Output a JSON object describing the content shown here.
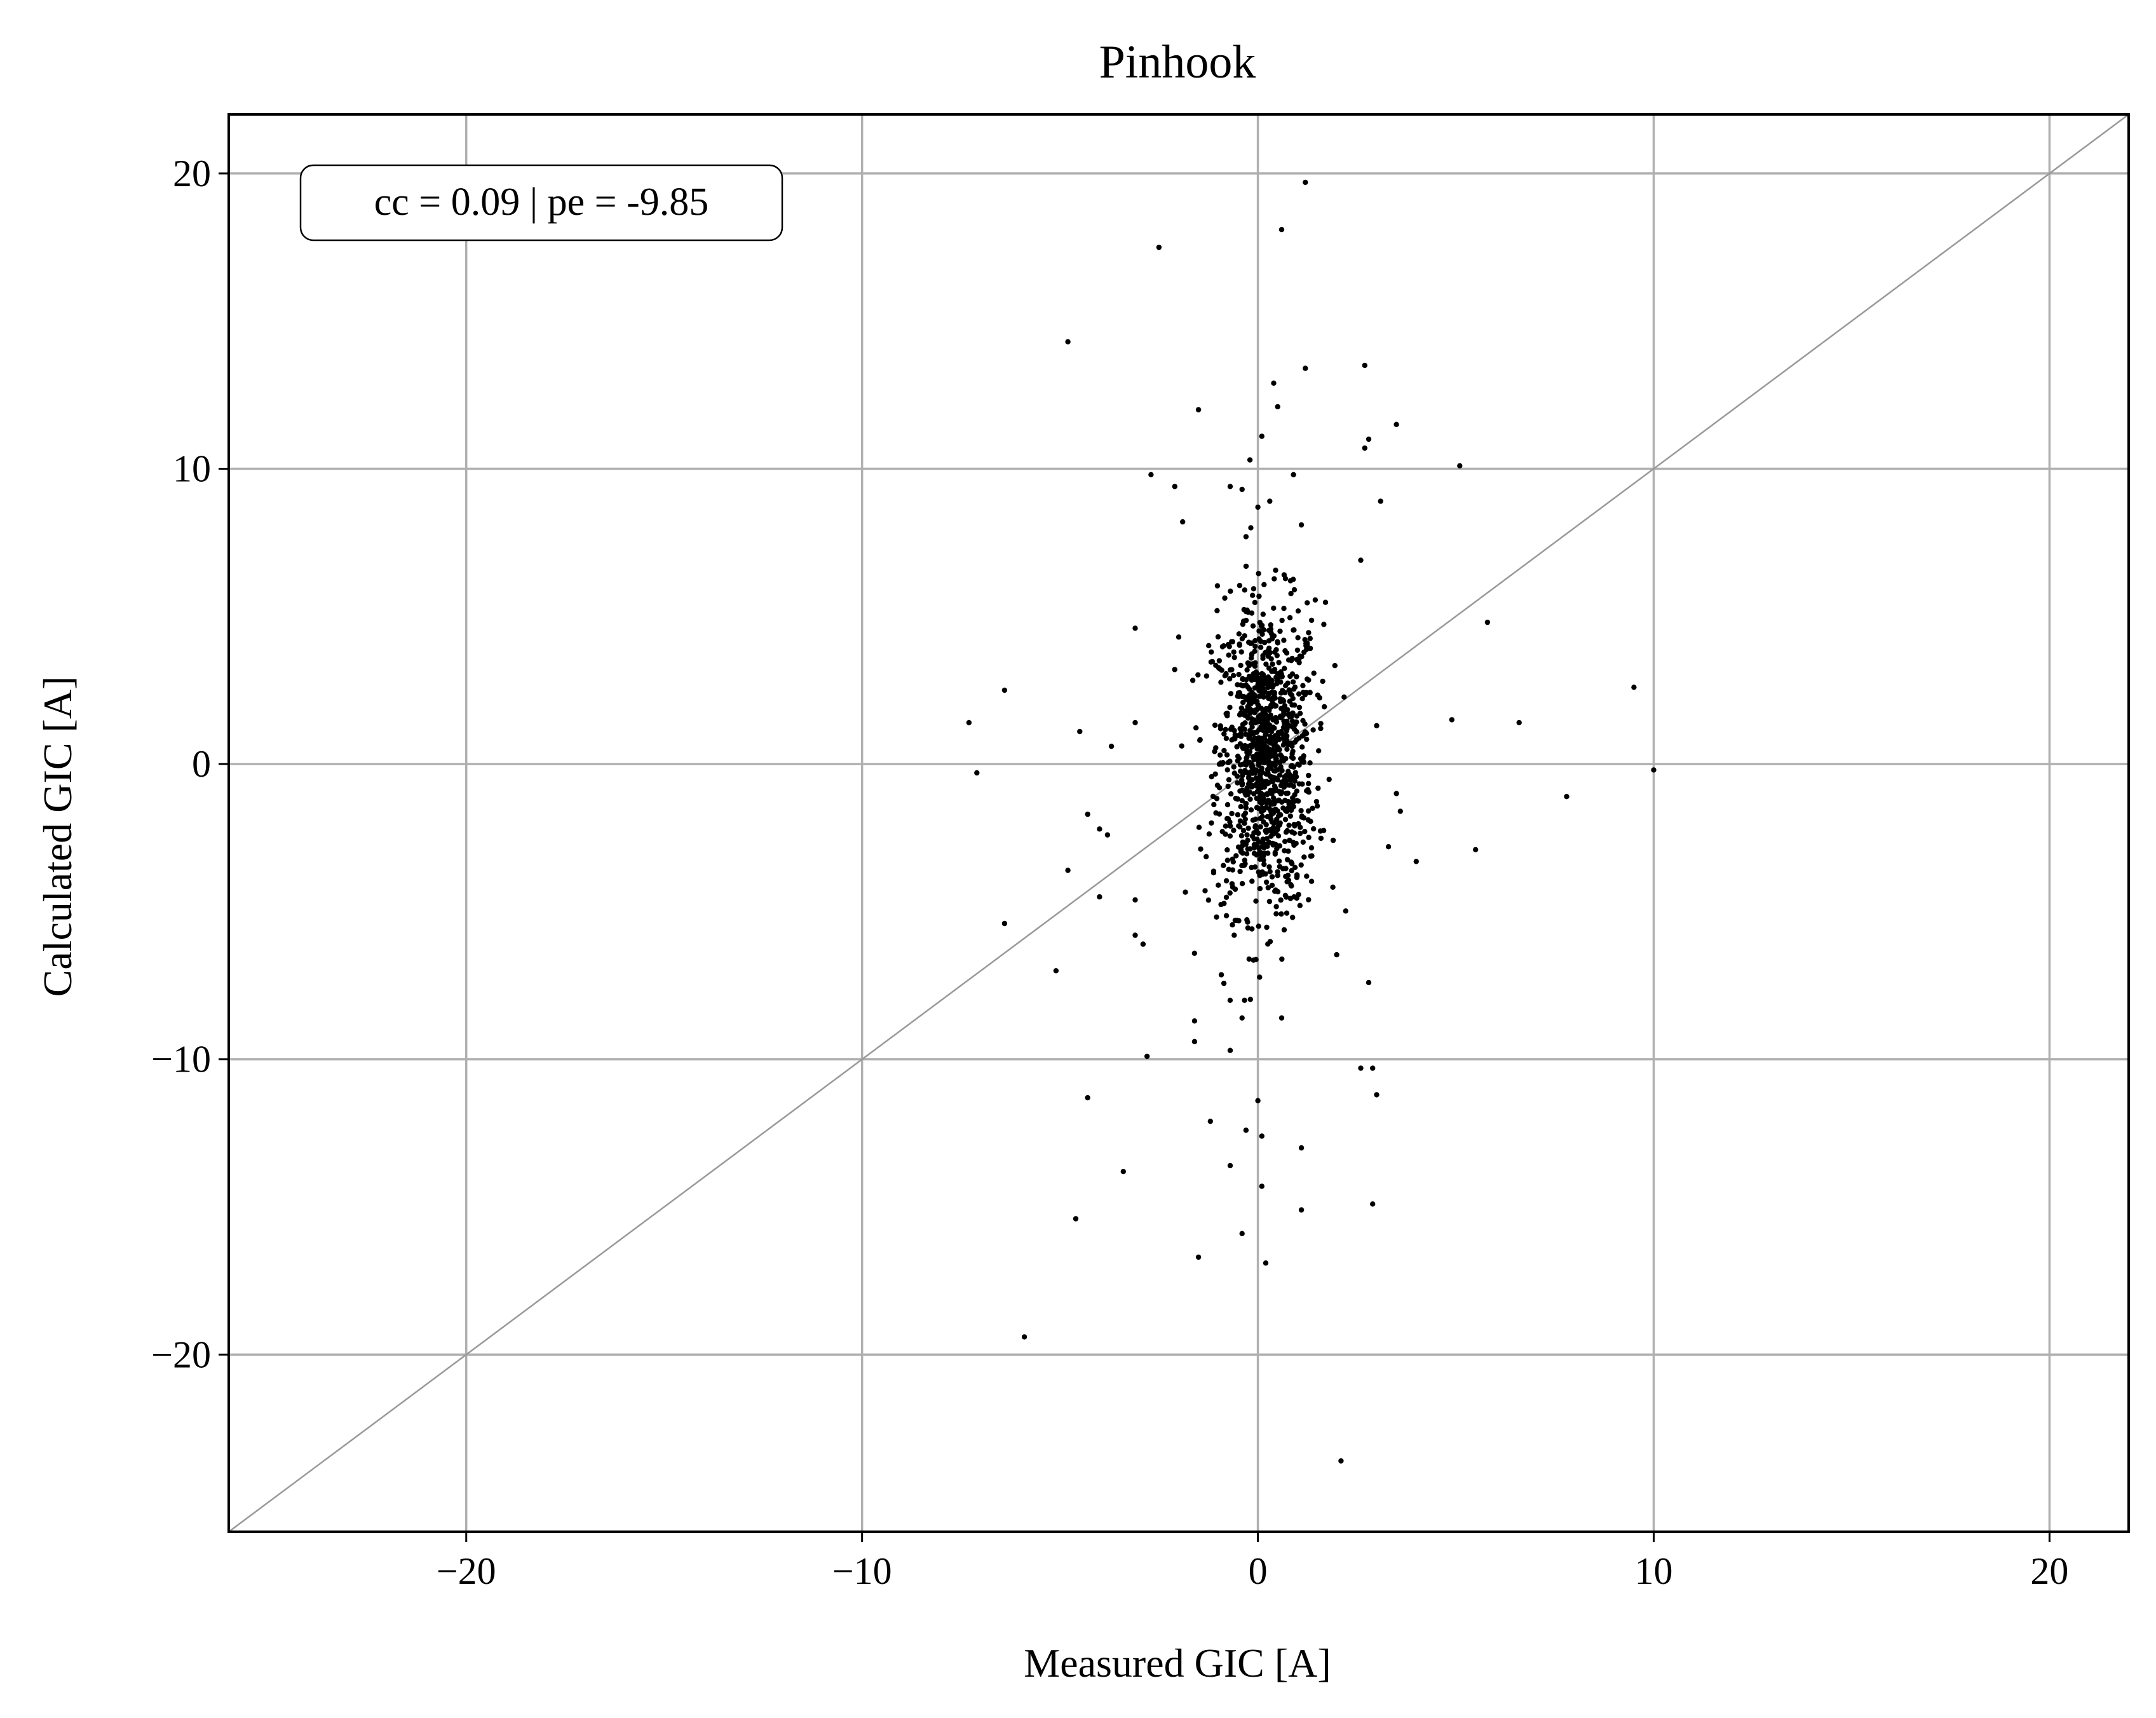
{
  "chart_data": {
    "type": "scatter",
    "title": "Pinhook",
    "xlabel": "Measured GIC [A]",
    "ylabel": "Calculated GIC [A]",
    "xlim": [
      -26,
      22
    ],
    "ylim": [
      -26,
      22
    ],
    "x_ticks": [
      -20,
      -10,
      0,
      10,
      20
    ],
    "y_ticks": [
      -20,
      -10,
      0,
      10,
      20
    ],
    "x_tick_labels": [
      "−20",
      "−10",
      "0",
      "10",
      "20"
    ],
    "y_tick_labels": [
      "−20",
      "−10",
      "0",
      "10",
      "20"
    ],
    "grid": true,
    "reference_line": {
      "type": "y=x",
      "color": "#999999"
    },
    "annotation": {
      "text": "cc = 0.09 | pe = -9.85",
      "position": "top-left"
    },
    "point_color": "#000000",
    "cluster": {
      "center_x": 0.2,
      "center_y": 0.2,
      "sd_x": 0.55,
      "sd_y": 2.6,
      "count": 1150
    },
    "points": [
      [
        1.2,
        19.7
      ],
      [
        0.6,
        18.1
      ],
      [
        -2.5,
        17.5
      ],
      [
        -4.8,
        14.3
      ],
      [
        2.7,
        13.5
      ],
      [
        1.2,
        13.4
      ],
      [
        0.4,
        12.9
      ],
      [
        0.5,
        12.1
      ],
      [
        -1.5,
        12.0
      ],
      [
        3.5,
        11.5
      ],
      [
        2.8,
        11.0
      ],
      [
        2.7,
        10.7
      ],
      [
        0.1,
        11.1
      ],
      [
        -0.2,
        10.3
      ],
      [
        5.1,
        10.1
      ],
      [
        -2.7,
        9.8
      ],
      [
        0.9,
        9.8
      ],
      [
        -2.1,
        9.4
      ],
      [
        -0.7,
        9.4
      ],
      [
        -0.4,
        9.3
      ],
      [
        3.1,
        8.9
      ],
      [
        0.3,
        8.9
      ],
      [
        0.0,
        8.7
      ],
      [
        -1.9,
        8.2
      ],
      [
        1.1,
        8.1
      ],
      [
        -0.3,
        7.7
      ],
      [
        2.6,
        6.9
      ],
      [
        -3.1,
        4.6
      ],
      [
        5.8,
        4.8
      ],
      [
        -2.0,
        4.3
      ],
      [
        -6.4,
        2.5
      ],
      [
        9.5,
        2.6
      ],
      [
        -7.3,
        1.4
      ],
      [
        -7.1,
        -0.3
      ],
      [
        4.9,
        1.5
      ],
      [
        6.6,
        1.4
      ],
      [
        3.0,
        1.3
      ],
      [
        -4.5,
        1.1
      ],
      [
        -3.1,
        1.4
      ],
      [
        -3.7,
        0.6
      ],
      [
        10.0,
        -0.2
      ],
      [
        7.8,
        -1.1
      ],
      [
        3.5,
        -1.0
      ],
      [
        3.6,
        -1.6
      ],
      [
        4.0,
        -3.3
      ],
      [
        3.3,
        -2.8
      ],
      [
        5.5,
        -2.9
      ],
      [
        -4.3,
        -1.7
      ],
      [
        -4.0,
        -2.2
      ],
      [
        -3.8,
        -2.4
      ],
      [
        -4.8,
        -3.6
      ],
      [
        -4.0,
        -4.5
      ],
      [
        -3.1,
        -4.6
      ],
      [
        -6.4,
        -5.4
      ],
      [
        -5.1,
        -7.0
      ],
      [
        -3.1,
        -5.8
      ],
      [
        -2.9,
        -6.1
      ],
      [
        2.8,
        -7.4
      ],
      [
        -1.6,
        -8.7
      ],
      [
        -0.4,
        -8.6
      ],
      [
        0.6,
        -8.6
      ],
      [
        -1.6,
        -9.4
      ],
      [
        -0.7,
        -9.7
      ],
      [
        -2.8,
        -9.9
      ],
      [
        2.6,
        -10.3
      ],
      [
        2.9,
        -10.3
      ],
      [
        3.0,
        -11.2
      ],
      [
        -4.3,
        -11.3
      ],
      [
        0.0,
        -11.4
      ],
      [
        -1.2,
        -12.1
      ],
      [
        -0.3,
        -12.4
      ],
      [
        0.1,
        -12.6
      ],
      [
        1.1,
        -13.0
      ],
      [
        -3.4,
        -13.8
      ],
      [
        -0.7,
        -13.6
      ],
      [
        0.1,
        -14.3
      ],
      [
        2.9,
        -14.9
      ],
      [
        1.1,
        -15.1
      ],
      [
        -4.6,
        -15.4
      ],
      [
        -0.4,
        -15.9
      ],
      [
        -1.5,
        -16.7
      ],
      [
        0.2,
        -16.9
      ],
      [
        -5.9,
        -19.4
      ],
      [
        2.1,
        -23.6
      ]
    ]
  }
}
